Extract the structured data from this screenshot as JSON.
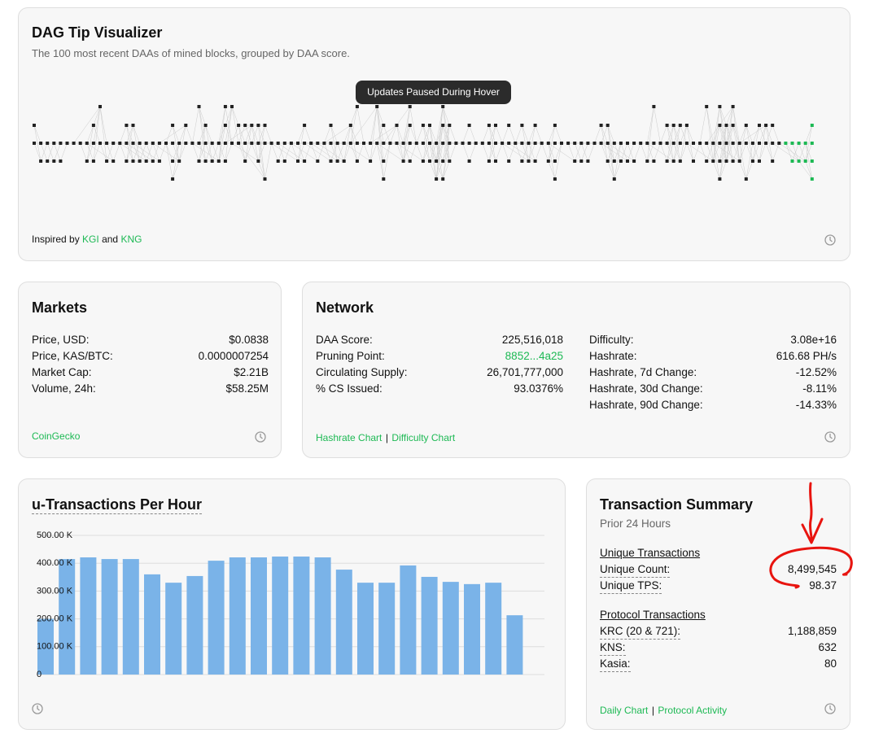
{
  "dag": {
    "title": "DAG Tip Visualizer",
    "subtitle": "The 100 most recent DAAs of mined blocks, grouped by DAA score.",
    "tooltip": "Updates Paused During Hover",
    "footer": {
      "prefix": "Inspired by",
      "link1": "KGI",
      "joiner": "and",
      "link2": "KNG"
    }
  },
  "markets": {
    "title": "Markets",
    "rows": [
      {
        "label": "Price, USD:",
        "value": "$0.0838"
      },
      {
        "label": "Price, KAS/BTC:",
        "value": "0.0000007254"
      },
      {
        "label": "Market Cap:",
        "value": "$2.21B"
      },
      {
        "label": "Volume, 24h:",
        "value": "$58.25M"
      }
    ],
    "source": "CoinGecko"
  },
  "network": {
    "title": "Network",
    "left_rows": [
      {
        "label": "DAA Score:",
        "value": "225,516,018"
      },
      {
        "label": "Pruning Point:",
        "value": "8852...4a25"
      },
      {
        "label": "Circulating Supply:",
        "value": "26,701,777,000"
      },
      {
        "label": "% CS Issued:",
        "value": "93.0376%"
      }
    ],
    "right_rows": [
      {
        "label": "Difficulty:",
        "value": "3.08e+16"
      },
      {
        "label": "Hashrate:",
        "value": "616.68 PH/s"
      },
      {
        "label": "Hashrate, 7d Change:",
        "value": "-12.52%"
      },
      {
        "label": "Hashrate, 30d Change:",
        "value": "-8.11%"
      },
      {
        "label": "Hashrate, 90d Change:",
        "value": "-14.33%"
      }
    ],
    "links": [
      "Hashrate Chart",
      "Difficulty Chart"
    ],
    "separator": "|"
  },
  "chart_data": {
    "type": "bar",
    "title": "u-Transactions Per Hour",
    "values": [
      200000,
      415000,
      421000,
      415000,
      415000,
      360000,
      330000,
      354000,
      409000,
      421000,
      421000,
      424000,
      424000,
      421000,
      377000,
      330000,
      330000,
      392000,
      351000,
      333000,
      325000,
      330000,
      213000
    ],
    "color": "#7ab3e8",
    "ylim": [
      0,
      500000
    ],
    "yticks": [
      0,
      {
        "value": 100000,
        "label": "100.00 K"
      },
      {
        "value": 200000,
        "label": "200.00 K"
      },
      {
        "value": 300000,
        "label": "300.00 K"
      },
      {
        "value": 400000,
        "label": "400.00 K"
      },
      {
        "value": 500000,
        "label": "500.00 K"
      }
    ],
    "grid": true
  },
  "summary": {
    "title": "Transaction Summary",
    "subtitle": "Prior 24 Hours",
    "sections": [
      {
        "heading": "Unique Transactions",
        "rows": [
          {
            "label": "Unique Count:",
            "value": "8,499,545"
          },
          {
            "label": "Unique TPS:",
            "value": "98.37"
          }
        ]
      },
      {
        "heading": "Protocol Transactions",
        "rows": [
          {
            "label": "KRC (20 & 721):",
            "value": "1,188,859"
          },
          {
            "label": "KNS:",
            "value": "632"
          },
          {
            "label": "Kasia:",
            "value": "80"
          }
        ]
      }
    ],
    "links": [
      "Daily Chart",
      "Protocol Activity"
    ],
    "separator": "|"
  }
}
